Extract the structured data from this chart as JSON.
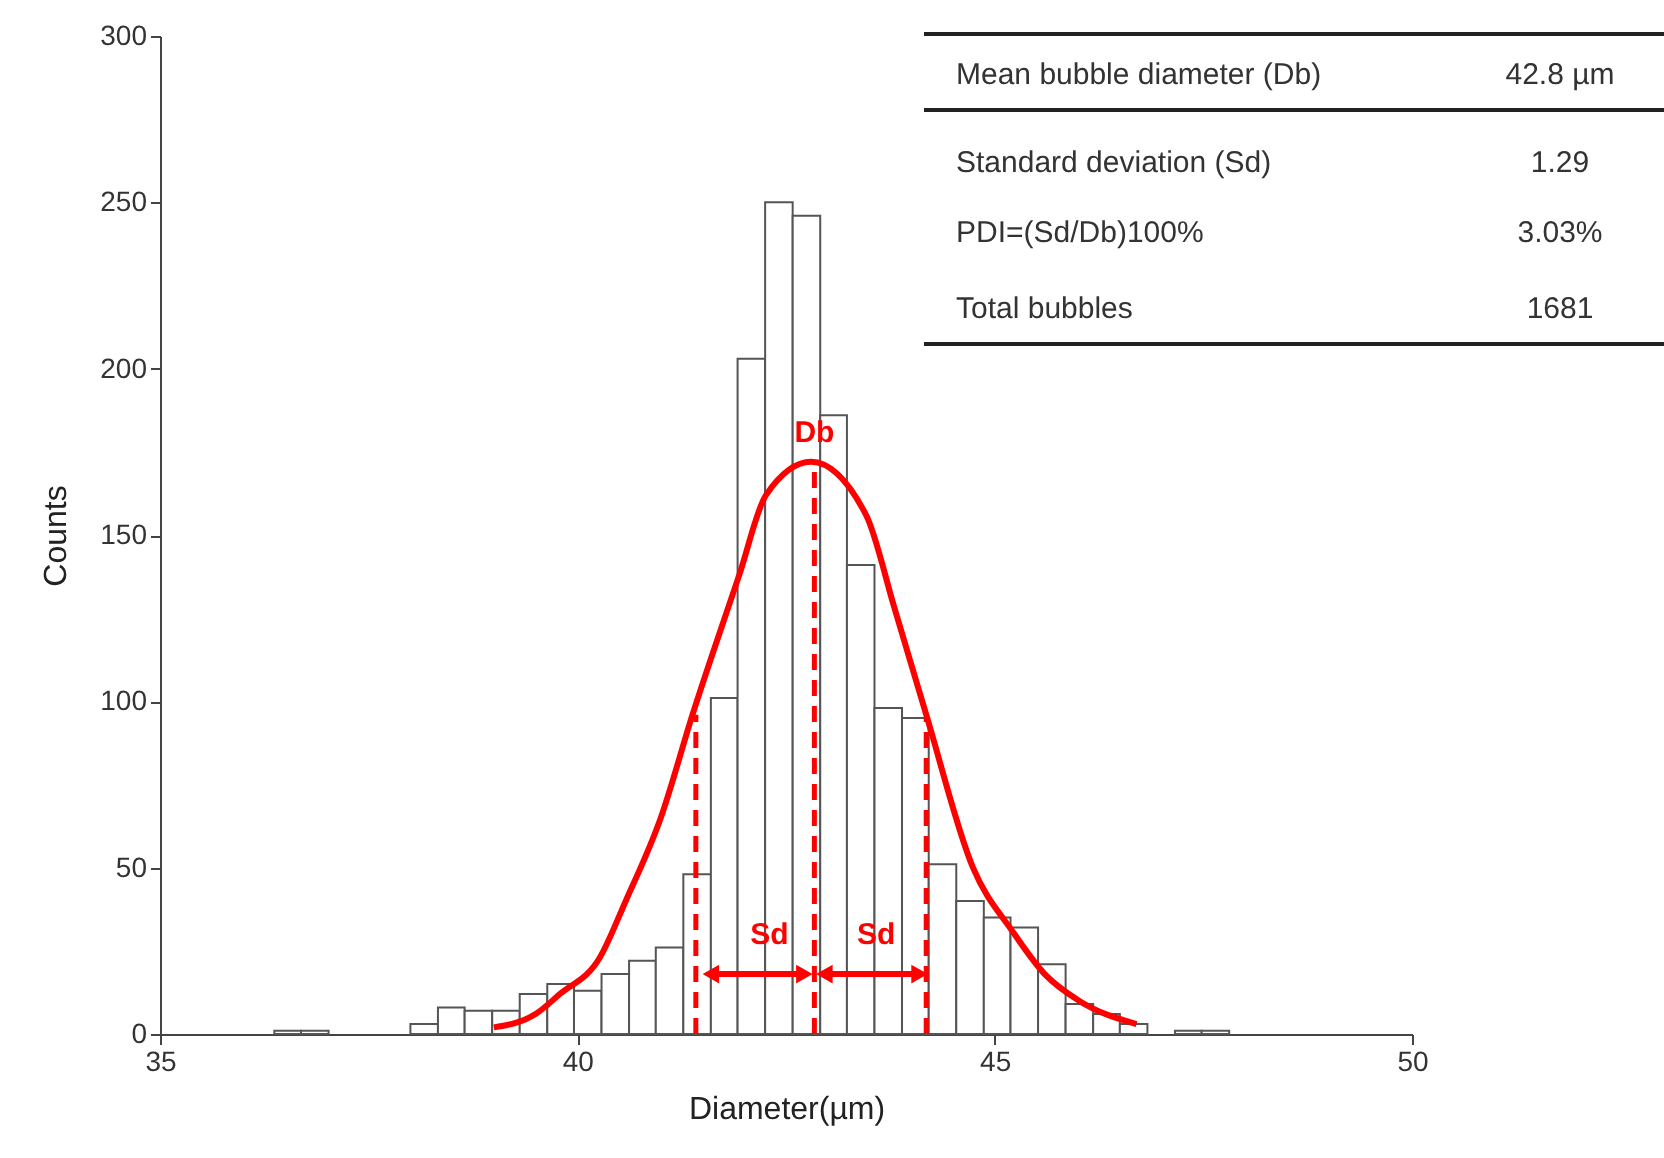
{
  "chart_data": {
    "type": "histogram",
    "xlabel": "Diameter(µm)",
    "ylabel": "Counts",
    "color": "#ffffff",
    "bins": [
      36.37,
      36.69,
      37.02,
      38.0,
      38.33,
      38.65,
      38.98,
      39.31,
      39.64,
      39.96,
      40.29,
      40.62,
      40.94,
      41.27,
      41.6,
      41.92,
      42.25,
      42.58,
      42.91,
      43.23,
      43.56,
      43.89,
      44.21,
      44.54,
      44.87,
      45.19,
      45.52,
      45.85,
      46.18,
      46.5,
      46.83,
      47.16,
      47.48,
      47.81
    ],
    "values": [
      1,
      1,
      0,
      3,
      8,
      7,
      7,
      12,
      15,
      13,
      18,
      22,
      26,
      48,
      101,
      203,
      250,
      246,
      186,
      141,
      98,
      95,
      51,
      40,
      35,
      32,
      21,
      9,
      6,
      3,
      0,
      1,
      1
    ],
    "series": [
      {
        "type": "line",
        "color": "#ff0000",
        "x": [
          39.0,
          39.5,
          39.79,
          40.27,
          40.58,
          41.0,
          41.38,
          41.94,
          42.26,
          42.8,
          43.46,
          43.8,
          44.18,
          44.74,
          45.21,
          45.6,
          46.01,
          46.7
        ],
        "values": [
          2,
          6,
          12,
          23,
          40,
          65,
          96,
          138,
          162,
          172,
          156,
          128,
          96,
          50,
          31,
          18,
          10,
          3
        ]
      },
      {
        "type": "line",
        "color": "#ff0000",
        "line_style": "dashed",
        "x": [
          41.42,
          41.42
        ],
        "values": [
          0,
          96
        ]
      },
      {
        "type": "line",
        "color": "#ff0000",
        "line_style": "dashed",
        "x": [
          42.84,
          42.84
        ],
        "values": [
          0,
          171
        ]
      },
      {
        "type": "line",
        "color": "#ff0000",
        "line_style": "dashed",
        "x": [
          44.18,
          44.18
        ],
        "values": [
          0,
          95
        ]
      },
      {
        "type": "line",
        "color": "#ff0000",
        "marker": "triangle",
        "x": [
          41.6,
          42.72
        ],
        "values": [
          18,
          18
        ]
      },
      {
        "type": "line",
        "color": "#ff0000",
        "marker": "triangle",
        "x": [
          42.96,
          44.1
        ],
        "values": [
          18,
          18
        ]
      }
    ],
    "xlim": [
      35,
      50
    ],
    "xticks": [
      35,
      40,
      45,
      50
    ],
    "ylim": [
      0,
      300
    ],
    "yticks": [
      0,
      50,
      100,
      150,
      200,
      250,
      300
    ],
    "grid": false,
    "annotations": [
      "Mean bubble diameter (Db)",
      "42.8 µm",
      "Standard deviation (Sd)",
      "1.29",
      "PDI=(Sd/Db)100%",
      "3.03%",
      "Total bubbles",
      "1681",
      {
        "text": "Db",
        "x": 42.84,
        "y": 181
      },
      {
        "text": "Sd",
        "x": 42.3,
        "y": 30
      },
      {
        "text": "Sd",
        "x": 43.58,
        "y": 30
      }
    ]
  }
}
